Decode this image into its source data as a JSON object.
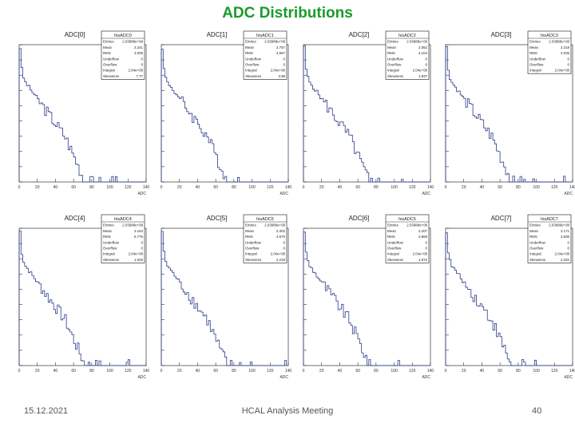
{
  "slide": {
    "title": "ADC Distributions",
    "footer_date": "15.12.2021",
    "footer_meeting": "HCAL Analysis Meeting",
    "page_number": "40"
  },
  "colors": {
    "title": "#1a9a2a",
    "histogram": "#2a3a8c",
    "text": "#222222"
  },
  "chart_data": [
    {
      "type": "bar",
      "title": "ADC[0]",
      "stats_title": "hisADC0",
      "xlabel": "ADC",
      "x_ticks": [
        "0",
        "20",
        "40",
        "60",
        "80",
        "100",
        "120",
        "140"
      ],
      "xlim": [
        0,
        140
      ],
      "log_y": true,
      "stats": [
        [
          "Entries",
          "2.03988e+08"
        ],
        [
          "Mean",
          "2.241"
        ],
        [
          "RMS",
          "4.005"
        ],
        [
          "Underflow",
          "0"
        ],
        [
          "Overflow",
          "0"
        ],
        [
          "Integral",
          "2.04e+08"
        ],
        [
          "Skewness",
          "7.77"
        ]
      ]
    },
    {
      "type": "bar",
      "title": "ADC[1]",
      "stats_title": "hisADC1",
      "xlabel": "ADC",
      "x_ticks": [
        "0",
        "20",
        "40",
        "60",
        "80",
        "100",
        "120",
        "140"
      ],
      "xlim": [
        0,
        140
      ],
      "log_y": true,
      "stats": [
        [
          "Entries",
          "2.03988e+08"
        ],
        [
          "Mean",
          "2.757"
        ],
        [
          "RMS",
          "4.657"
        ],
        [
          "Underflow",
          "0"
        ],
        [
          "Overflow",
          "0"
        ],
        [
          "Integral",
          "2.04e+08"
        ],
        [
          "Skewness",
          "3.98"
        ]
      ]
    },
    {
      "type": "bar",
      "title": "ADC[2]",
      "stats_title": "hisADC2",
      "xlabel": "ADC",
      "x_ticks": [
        "0",
        "20",
        "40",
        "60",
        "80",
        "100",
        "120",
        "140"
      ],
      "xlim": [
        0,
        140
      ],
      "log_y": true,
      "stats": [
        [
          "Entries",
          "2.03988e+08"
        ],
        [
          "Mean",
          "2.552"
        ],
        [
          "RMS",
          "4.104"
        ],
        [
          "Underflow",
          "0"
        ],
        [
          "Overflow",
          "0"
        ],
        [
          "Integral",
          "2.04e+08"
        ],
        [
          "Skewness",
          "1.937"
        ]
      ]
    },
    {
      "type": "bar",
      "title": "ADC[3]",
      "stats_title": "hisADC3",
      "xlabel": "ADC",
      "x_ticks": [
        "0",
        "20",
        "40",
        "60",
        "80",
        "100",
        "120",
        "140"
      ],
      "xlim": [
        0,
        140
      ],
      "log_y": true,
      "stats": [
        [
          "Entries",
          "2.03988e+08"
        ],
        [
          "Mean",
          "2.318"
        ],
        [
          "RMS",
          "4.035"
        ],
        [
          "Underflow",
          "0"
        ],
        [
          "Overflow",
          "0"
        ],
        [
          "Integral",
          "2.04e+08"
        ]
      ]
    },
    {
      "type": "bar",
      "title": "ADC[4]",
      "stats_title": "hisADC4",
      "xlabel": "ADC",
      "x_ticks": [
        "0",
        "20",
        "40",
        "60",
        "80",
        "100",
        "120",
        "140"
      ],
      "xlim": [
        0,
        140
      ],
      "log_y": true,
      "stats": [
        [
          "Entries",
          "2.03988e+08"
        ],
        [
          "Mean",
          "3.164"
        ],
        [
          "RMS",
          "5.775"
        ],
        [
          "Underflow",
          "0"
        ],
        [
          "Overflow",
          "0"
        ],
        [
          "Integral",
          "2.04e+08"
        ],
        [
          "Skewness",
          "1.049"
        ]
      ]
    },
    {
      "type": "bar",
      "title": "ADC[5]",
      "stats_title": "hisADC5",
      "xlabel": "ADC",
      "x_ticks": [
        "0",
        "20",
        "40",
        "60",
        "80",
        "100",
        "120",
        "140"
      ],
      "xlim": [
        0,
        140
      ],
      "log_y": true,
      "stats": [
        [
          "Entries",
          "2.03988e+08"
        ],
        [
          "Mean",
          "2.302"
        ],
        [
          "RMS",
          "4.670"
        ],
        [
          "Underflow",
          "0"
        ],
        [
          "Overflow",
          "0"
        ],
        [
          "Integral",
          "2.04e+08"
        ],
        [
          "Skewness",
          "2.218"
        ]
      ]
    },
    {
      "type": "bar",
      "title": "ADC[6]",
      "stats_title": "hisADC6",
      "xlabel": "ADC",
      "x_ticks": [
        "0",
        "20",
        "40",
        "60",
        "80",
        "100",
        "120",
        "140"
      ],
      "xlim": [
        0,
        140
      ],
      "log_y": true,
      "stats": [
        [
          "Entries",
          "2.03988e+08"
        ],
        [
          "Mean",
          "2.207"
        ],
        [
          "RMS",
          "3.868"
        ],
        [
          "Underflow",
          "0"
        ],
        [
          "Overflow",
          "0"
        ],
        [
          "Integral",
          "2.04e+08"
        ],
        [
          "Skewness",
          "1.872"
        ]
      ]
    },
    {
      "type": "bar",
      "title": "ADC[7]",
      "stats_title": "hisADC7",
      "xlabel": "ADC",
      "x_ticks": [
        "0",
        "20",
        "40",
        "60",
        "80",
        "100",
        "120",
        "140"
      ],
      "xlim": [
        0,
        140
      ],
      "log_y": true,
      "stats": [
        [
          "Entries",
          "2.03988e+08"
        ],
        [
          "Mean",
          "2.171"
        ],
        [
          "RMS",
          "3.835"
        ],
        [
          "Underflow",
          "0"
        ],
        [
          "Overflow",
          "0"
        ],
        [
          "Integral",
          "2.04e+08"
        ],
        [
          "Skewness",
          "2.331"
        ]
      ]
    }
  ]
}
